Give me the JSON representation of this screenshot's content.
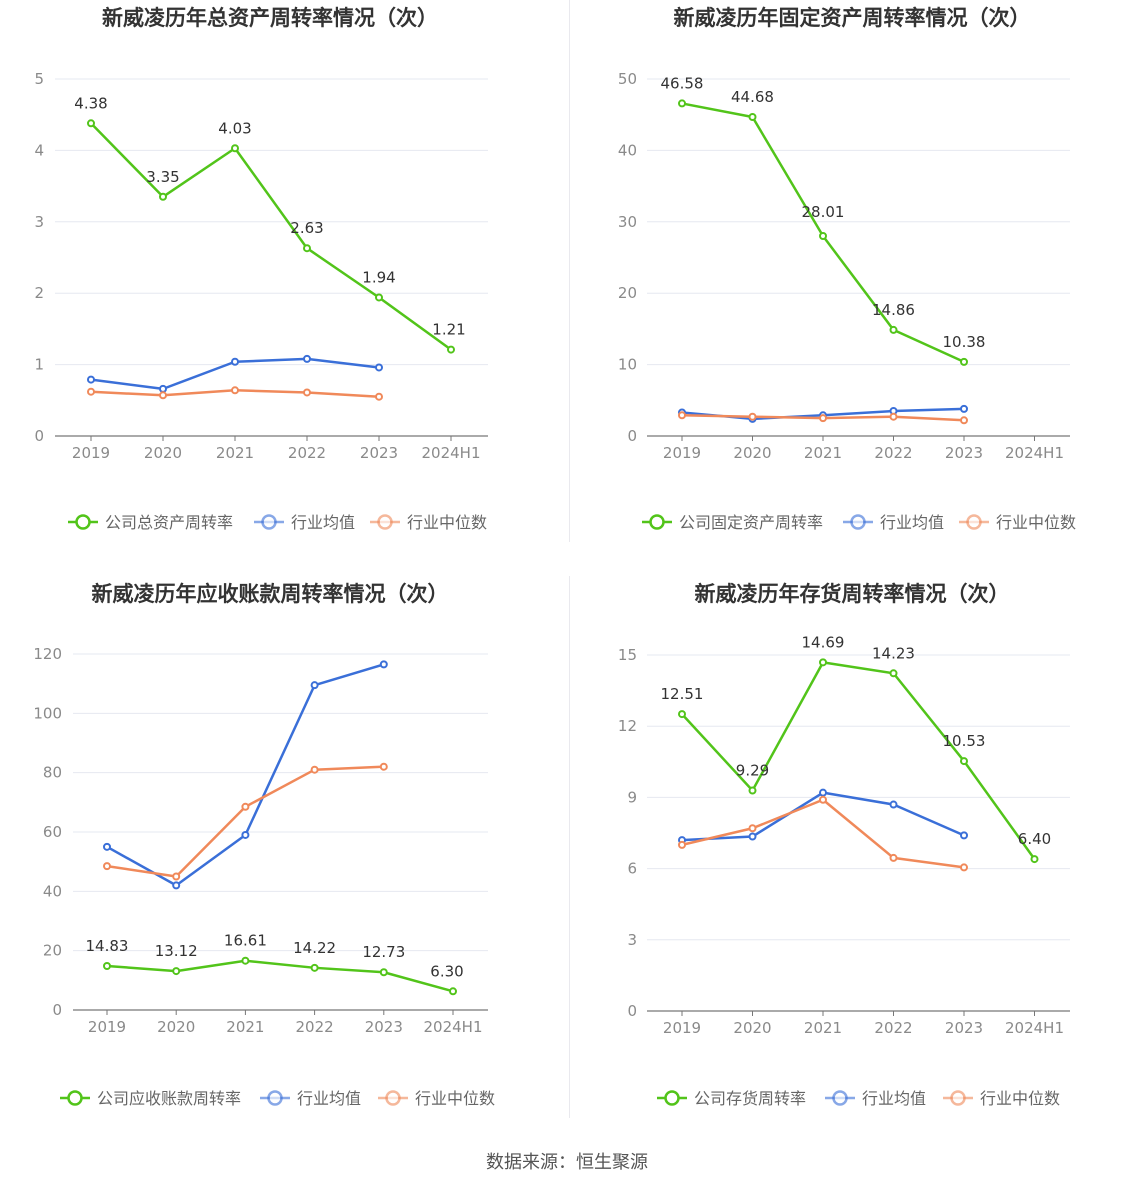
{
  "colors": {
    "company": "#52c41a",
    "avg": "#3a6fd8",
    "median": "#f0895a",
    "grid": "#e6e8f0",
    "axis": "#777777"
  },
  "source": "数据来源：恒生聚源",
  "chart_data": [
    {
      "type": "line",
      "title": "新威凌历年总资产周转率情况（次）",
      "categories": [
        "2019",
        "2020",
        "2021",
        "2022",
        "2023",
        "2024H1"
      ],
      "ylim": [
        0,
        5
      ],
      "yticks": [
        0,
        1,
        2,
        3,
        4,
        5
      ],
      "ytick_labels": [
        "0",
        "1",
        "2",
        "3",
        "4",
        "5"
      ],
      "grid": true,
      "legend_position": "bottom",
      "series": [
        {
          "name": "公司总资产周转率",
          "role": "company",
          "values": [
            4.38,
            3.35,
            4.03,
            2.63,
            1.94,
            1.21
          ],
          "labels": [
            "4.38",
            "3.35",
            "4.03",
            "2.63",
            "1.94",
            "1.21"
          ]
        },
        {
          "name": "行业均值",
          "role": "avg",
          "values": [
            0.79,
            0.66,
            1.04,
            1.08,
            0.96,
            null
          ]
        },
        {
          "name": "行业中位数",
          "role": "median",
          "values": [
            0.62,
            0.57,
            0.64,
            0.61,
            0.55,
            null
          ]
        }
      ]
    },
    {
      "type": "line",
      "title": "新威凌历年固定资产周转率情况（次）",
      "categories": [
        "2019",
        "2020",
        "2021",
        "2022",
        "2023",
        "2024H1"
      ],
      "ylim": [
        0,
        50
      ],
      "yticks": [
        0,
        10,
        20,
        30,
        40,
        50
      ],
      "ytick_labels": [
        "0",
        "10",
        "20",
        "30",
        "40",
        "50"
      ],
      "grid": true,
      "legend_position": "bottom",
      "series": [
        {
          "name": "公司固定资产周转率",
          "role": "company",
          "values": [
            46.58,
            44.68,
            28.01,
            14.86,
            10.38,
            null
          ],
          "labels": [
            "46.58",
            "44.68",
            "28.01",
            "14.86",
            "10.38",
            null
          ]
        },
        {
          "name": "行业均值",
          "role": "avg",
          "values": [
            3.3,
            2.4,
            2.9,
            3.5,
            3.8,
            null
          ]
        },
        {
          "name": "行业中位数",
          "role": "median",
          "values": [
            2.9,
            2.7,
            2.5,
            2.7,
            2.2,
            null
          ]
        }
      ]
    },
    {
      "type": "line",
      "title": "新威凌历年应收账款周转率情况（次）",
      "categories": [
        "2019",
        "2020",
        "2021",
        "2022",
        "2023",
        "2024H1"
      ],
      "ylim": [
        0,
        120
      ],
      "yticks": [
        0,
        20,
        40,
        60,
        80,
        100,
        120
      ],
      "ytick_labels": [
        "0",
        "20",
        "40",
        "60",
        "80",
        "100",
        "120"
      ],
      "grid": true,
      "legend_position": "bottom",
      "series": [
        {
          "name": "公司应收账款周转率",
          "role": "company",
          "values": [
            14.83,
            13.12,
            16.61,
            14.22,
            12.73,
            6.3
          ],
          "labels": [
            "14.83",
            "13.12",
            "16.61",
            "14.22",
            "12.73",
            "6.30"
          ]
        },
        {
          "name": "行业均值",
          "role": "avg",
          "values": [
            55,
            42,
            59,
            109.5,
            116.5,
            null
          ]
        },
        {
          "name": "行业中位数",
          "role": "median",
          "values": [
            48.5,
            45,
            68.5,
            81,
            82,
            null
          ]
        }
      ]
    },
    {
      "type": "line",
      "title": "新威凌历年存货周转率情况（次）",
      "categories": [
        "2019",
        "2020",
        "2021",
        "2022",
        "2023",
        "2024H1"
      ],
      "ylim": [
        0,
        15
      ],
      "yticks": [
        0,
        3,
        6,
        9,
        12,
        15
      ],
      "ytick_labels": [
        "0",
        "3",
        "6",
        "9",
        "12",
        "15"
      ],
      "grid": true,
      "legend_position": "bottom",
      "series": [
        {
          "name": "公司存货周转率",
          "role": "company",
          "values": [
            12.51,
            9.29,
            14.69,
            14.23,
            10.53,
            6.4
          ],
          "labels": [
            "12.51",
            "9.29",
            "14.69",
            "14.23",
            "10.53",
            "6.40"
          ]
        },
        {
          "name": "行业均值",
          "role": "avg",
          "values": [
            7.2,
            7.35,
            9.2,
            8.7,
            7.4,
            null
          ]
        },
        {
          "name": "行业中位数",
          "role": "median",
          "values": [
            7.0,
            7.7,
            8.9,
            6.45,
            6.05,
            null
          ]
        }
      ]
    }
  ]
}
